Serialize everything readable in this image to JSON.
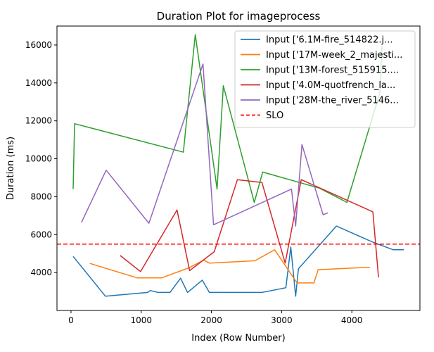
{
  "chart_data": {
    "type": "line",
    "title": "Duration Plot for imageprocess",
    "xlabel": "Index (Row Number)",
    "ylabel": "Duration (ms)",
    "xlim": [
      -200,
      4970
    ],
    "ylim": [
      2000,
      17000
    ],
    "xticks": [
      0,
      1000,
      2000,
      3000,
      4000
    ],
    "yticks": [
      4000,
      6000,
      8000,
      10000,
      12000,
      14000,
      16000
    ],
    "xtick_labels": [
      "0",
      "1000",
      "2000",
      "3000",
      "4000"
    ],
    "ytick_labels": [
      "4000",
      "6000",
      "8000",
      "10000",
      "12000",
      "14000",
      "16000"
    ],
    "legend_position": "top-right",
    "grid": false,
    "series": [
      {
        "name": "Input ['6.1M-fire_514822.j...",
        "color": "#1f77b4",
        "x": [
          30,
          490,
          1090,
          1130,
          1240,
          1410,
          1560,
          1660,
          1870,
          1970,
          2720,
          3060,
          3130,
          3200,
          3240,
          3780,
          4300,
          4590,
          4740
        ],
        "y": [
          4850,
          2750,
          2950,
          3050,
          2950,
          2950,
          3700,
          2950,
          3600,
          2950,
          2950,
          3200,
          5350,
          2750,
          4200,
          6450,
          5600,
          5200,
          5200
        ]
      },
      {
        "name": "Input ['17M-week_2_majesti...",
        "color": "#ff7f0e",
        "x": [
          270,
          940,
          1290,
          1680,
          1890,
          1970,
          2620,
          2900,
          3220,
          3460,
          3520,
          4260
        ],
        "y": [
          4480,
          3720,
          3720,
          4250,
          4650,
          4500,
          4620,
          5200,
          3450,
          3450,
          4150,
          4280
        ]
      },
      {
        "name": "Input ['13M-forest_515915....",
        "color": "#2ca02c",
        "x": [
          30,
          50,
          1600,
          1770,
          2080,
          2170,
          2610,
          2730,
          3540,
          3930,
          4400,
          4430
        ],
        "y": [
          8400,
          11850,
          10350,
          16550,
          8400,
          13850,
          7700,
          9300,
          8450,
          7700,
          13500,
          15950
        ]
      },
      {
        "name": "Input ['4.0M-quotfrench_la...",
        "color": "#d62728",
        "x": [
          700,
          990,
          1510,
          1690,
          2040,
          2370,
          2720,
          3050,
          3280,
          4300,
          4380
        ],
        "y": [
          4900,
          4050,
          7300,
          4100,
          5100,
          8900,
          8750,
          4500,
          8900,
          7200,
          3750
        ]
      },
      {
        "name": "Input ['28M-the_river_5146...",
        "color": "#9467bd",
        "x": [
          150,
          500,
          1110,
          1880,
          2030,
          3140,
          3200,
          3290,
          3590,
          3660
        ],
        "y": [
          6650,
          9400,
          6600,
          15000,
          6520,
          8400,
          6450,
          10750,
          7050,
          7150
        ]
      }
    ],
    "reference_lines": [
      {
        "name": "SLO",
        "color": "#ff0000",
        "style": "dashed",
        "y": 5500
      }
    ]
  }
}
